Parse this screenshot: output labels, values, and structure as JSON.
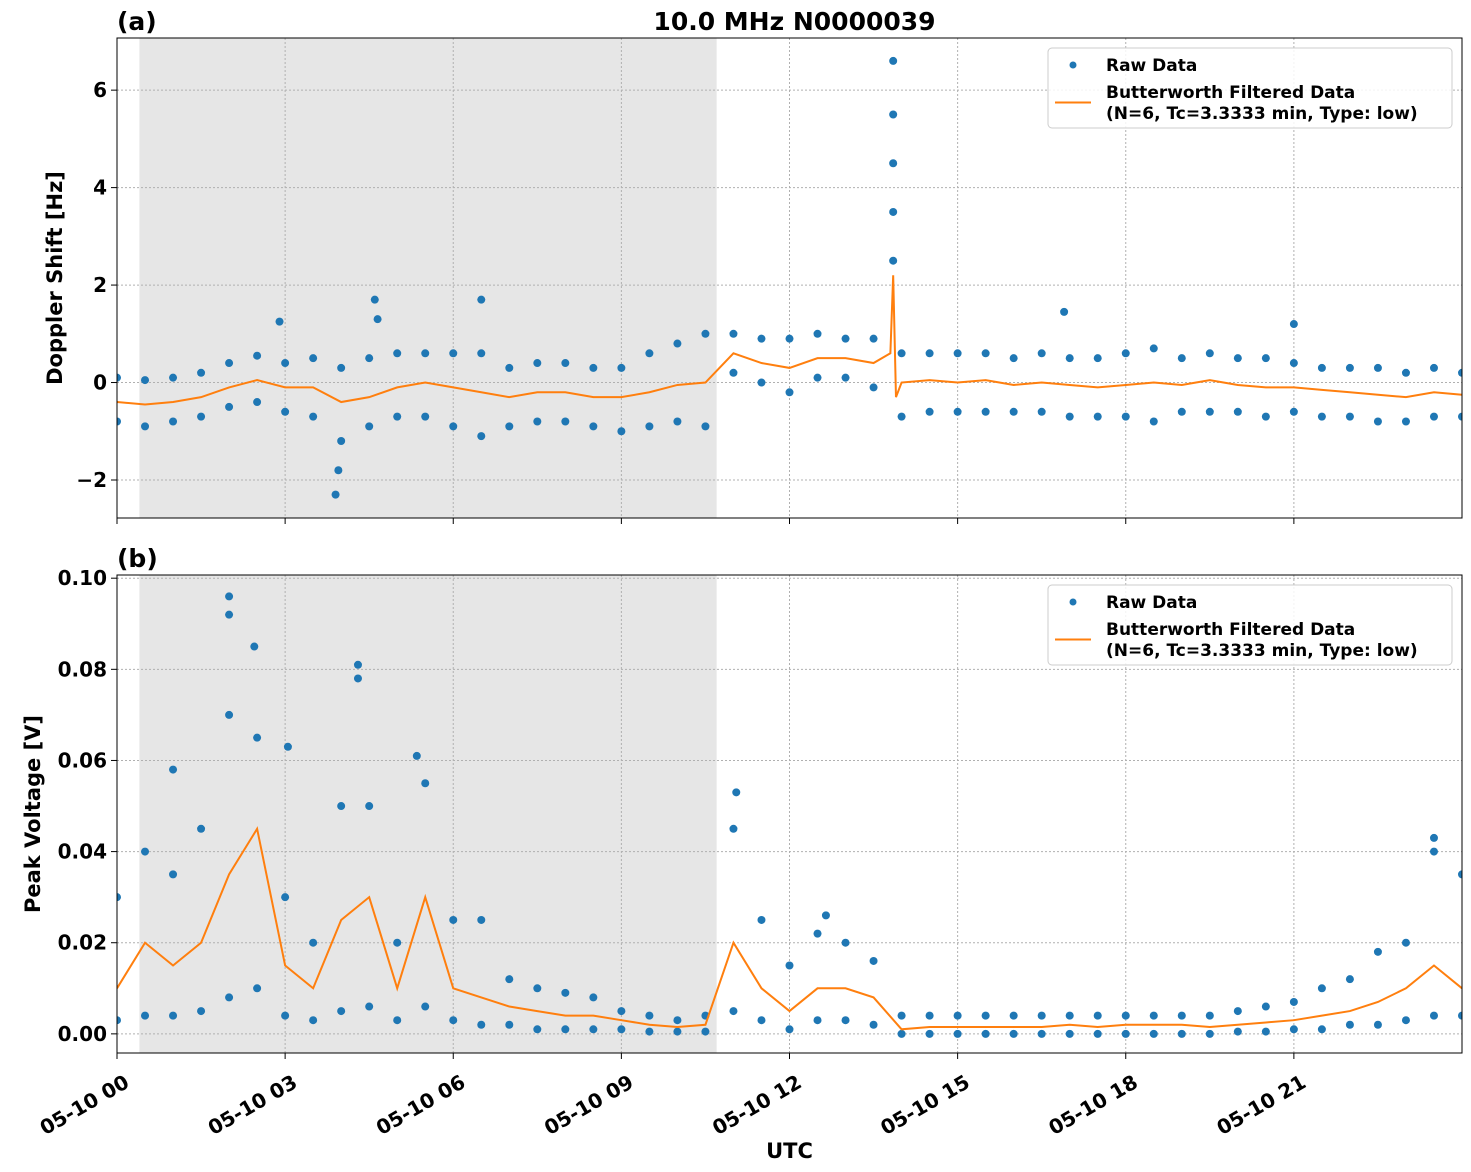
{
  "chart_data": [
    {
      "type": "scatter",
      "title": "10.0 MHz N0000039",
      "panel_label": "(a)",
      "ylabel": "Doppler Shift [Hz]",
      "xlim": [
        0,
        24
      ],
      "ylim": [
        -2.78,
        7.07
      ],
      "xticks": [
        0,
        3,
        6,
        9,
        12,
        15,
        18,
        21
      ],
      "yticks": [
        {
          "value": -2,
          "label": "−2"
        },
        0,
        2,
        4,
        6
      ],
      "grid": true,
      "legend": "upper right",
      "shaded_span": [
        0.4,
        10.7
      ],
      "shade_color": "#e6e6e6",
      "series": [
        {
          "name": "Raw Data",
          "type": "scatter",
          "color": "#1f77b4",
          "x": [
            0,
            0.5,
            1,
            1.5,
            2,
            2.5,
            3,
            3.5,
            4,
            4.5,
            5,
            5.5,
            6,
            6.5,
            7,
            7.5,
            8,
            8.5,
            9,
            9.5,
            10,
            10.5,
            11,
            11.5,
            12,
            12.5,
            13,
            13.5,
            14,
            14.5,
            15,
            15.5,
            16,
            16.5,
            17,
            17.5,
            18,
            18.5,
            19,
            19.5,
            20,
            20.5,
            21,
            21.5,
            22,
            22.5,
            23,
            23.5,
            24,
            0,
            0.5,
            1,
            1.5,
            2,
            2.5,
            3,
            3.5,
            4,
            4.5,
            5,
            5.5,
            6,
            6.5,
            7,
            7.5,
            8,
            8.5,
            9,
            9.5,
            10,
            10.5,
            11,
            11.5,
            12,
            12.5,
            13,
            13.5,
            14,
            14.5,
            15,
            15.5,
            16,
            16.5,
            17,
            17.5,
            18,
            18.5,
            19,
            19.5,
            20,
            20.5,
            21,
            21.5,
            22,
            22.5,
            23,
            23.5,
            24,
            2.9,
            3.9,
            3.95,
            4.6,
            4.65,
            6.5,
            13.85,
            13.85,
            13.85,
            13.85,
            13.85,
            16.9,
            21.0
          ],
          "values": [
            0.1,
            0.05,
            0.1,
            0.2,
            0.4,
            0.55,
            0.4,
            0.5,
            0.3,
            0.5,
            0.6,
            0.6,
            0.6,
            0.6,
            0.3,
            0.4,
            0.4,
            0.3,
            0.3,
            0.6,
            0.8,
            1.0,
            1.0,
            0.9,
            0.9,
            1.0,
            0.9,
            0.9,
            0.6,
            0.6,
            0.6,
            0.6,
            0.5,
            0.6,
            0.5,
            0.5,
            0.6,
            0.7,
            0.5,
            0.6,
            0.5,
            0.5,
            0.4,
            0.3,
            0.3,
            0.3,
            0.2,
            0.3,
            0.2,
            -0.8,
            -0.9,
            -0.8,
            -0.7,
            -0.5,
            -0.4,
            -0.6,
            -0.7,
            -1.2,
            -0.9,
            -0.7,
            -0.7,
            -0.9,
            -1.1,
            -0.9,
            -0.8,
            -0.8,
            -0.9,
            -1.0,
            -0.9,
            -0.8,
            -0.9,
            0.2,
            0.0,
            -0.2,
            0.1,
            0.1,
            -0.1,
            -0.7,
            -0.6,
            -0.6,
            -0.6,
            -0.6,
            -0.6,
            -0.7,
            -0.7,
            -0.7,
            -0.8,
            -0.6,
            -0.6,
            -0.6,
            -0.7,
            -0.6,
            -0.7,
            -0.7,
            -0.8,
            -0.8,
            -0.7,
            -0.7,
            1.25,
            -2.3,
            -1.8,
            1.7,
            1.3,
            1.7,
            6.6,
            5.5,
            4.5,
            3.5,
            2.5,
            1.45,
            1.2
          ]
        },
        {
          "name": "Butterworth Filtered Data\n(N=6, Tc=3.3333 min, Type: low)",
          "type": "line",
          "color": "#ff7f0e",
          "x": [
            0,
            0.5,
            1,
            1.5,
            2,
            2.5,
            3,
            3.5,
            4,
            4.5,
            5,
            5.5,
            6,
            6.5,
            7,
            7.5,
            8,
            8.5,
            9,
            9.5,
            10,
            10.5,
            11,
            11.5,
            12,
            12.5,
            13,
            13.5,
            13.8,
            13.85,
            13.9,
            14,
            14.5,
            15,
            15.5,
            16,
            16.5,
            17,
            17.5,
            18,
            18.5,
            19,
            19.5,
            20,
            20.5,
            21,
            21.5,
            22,
            22.5,
            23,
            23.5,
            24
          ],
          "values": [
            -0.4,
            -0.45,
            -0.4,
            -0.3,
            -0.1,
            0.05,
            -0.1,
            -0.1,
            -0.4,
            -0.3,
            -0.1,
            0.0,
            -0.1,
            -0.2,
            -0.3,
            -0.2,
            -0.2,
            -0.3,
            -0.3,
            -0.2,
            -0.05,
            0.0,
            0.6,
            0.4,
            0.3,
            0.5,
            0.5,
            0.4,
            0.6,
            2.2,
            -0.3,
            0.0,
            0.05,
            0.0,
            0.05,
            -0.05,
            0.0,
            -0.05,
            -0.1,
            -0.05,
            0.0,
            -0.05,
            0.05,
            -0.05,
            -0.1,
            -0.1,
            -0.15,
            -0.2,
            -0.25,
            -0.3,
            -0.2,
            -0.25
          ]
        }
      ]
    },
    {
      "type": "scatter",
      "panel_label": "(b)",
      "ylabel": "Peak Voltage [V]",
      "xlabel": "UTC",
      "xlim": [
        0,
        24
      ],
      "ylim": [
        -0.0042,
        0.1007
      ],
      "xticks": [
        {
          "value": 0,
          "label": "05-10 00"
        },
        {
          "value": 3,
          "label": "05-10 03"
        },
        {
          "value": 6,
          "label": "05-10 06"
        },
        {
          "value": 9,
          "label": "05-10 09"
        },
        {
          "value": 12,
          "label": "05-10 12"
        },
        {
          "value": 15,
          "label": "05-10 15"
        },
        {
          "value": 18,
          "label": "05-10 18"
        },
        {
          "value": 21,
          "label": "05-10 21"
        }
      ],
      "yticks": [
        {
          "value": 0,
          "label": "0.00"
        },
        0.02,
        0.04,
        0.06,
        0.08,
        {
          "value": 0.1,
          "label": "0.10"
        }
      ],
      "grid": true,
      "legend": "upper right",
      "shaded_span": [
        0.4,
        10.7
      ],
      "shade_color": "#e6e6e6",
      "series": [
        {
          "name": "Raw Data",
          "type": "scatter",
          "color": "#1f77b4",
          "x": [
            0,
            0.5,
            1,
            1.5,
            2,
            2.5,
            3,
            3.5,
            4,
            4.5,
            5,
            5.5,
            6,
            6.5,
            7,
            7.5,
            8,
            8.5,
            9,
            9.5,
            10,
            10.5,
            11,
            11.5,
            12,
            12.5,
            13,
            13.5,
            14,
            14.5,
            15,
            15.5,
            16,
            16.5,
            17,
            17.5,
            18,
            18.5,
            19,
            19.5,
            20,
            20.5,
            21,
            21.5,
            22,
            22.5,
            23,
            23.5,
            24,
            0,
            0.5,
            1,
            1.5,
            2,
            2.5,
            3,
            3.5,
            4,
            4.5,
            5,
            5.5,
            6,
            6.5,
            7,
            7.5,
            8,
            8.5,
            9,
            9.5,
            10,
            10.5,
            11,
            11.5,
            12,
            12.5,
            13,
            13.5,
            14,
            14.5,
            15,
            15.5,
            16,
            16.5,
            17,
            17.5,
            18,
            18.5,
            19,
            19.5,
            20,
            20.5,
            21,
            21.5,
            22,
            22.5,
            23,
            23.5,
            24,
            2.0,
            2.0,
            2.45,
            4.3,
            4.3,
            5.35,
            1.0,
            11.05,
            23.5,
            12.65,
            3.05
          ],
          "values": [
            0.03,
            0.04,
            0.035,
            0.045,
            0.07,
            0.065,
            0.03,
            0.02,
            0.05,
            0.05,
            0.02,
            0.055,
            0.025,
            0.025,
            0.012,
            0.01,
            0.009,
            0.008,
            0.005,
            0.004,
            0.003,
            0.004,
            0.045,
            0.025,
            0.015,
            0.022,
            0.02,
            0.016,
            0.004,
            0.004,
            0.004,
            0.004,
            0.004,
            0.004,
            0.004,
            0.004,
            0.004,
            0.004,
            0.004,
            0.004,
            0.005,
            0.006,
            0.007,
            0.01,
            0.012,
            0.018,
            0.02,
            0.04,
            0.035,
            0.003,
            0.004,
            0.004,
            0.005,
            0.008,
            0.01,
            0.004,
            0.003,
            0.005,
            0.006,
            0.003,
            0.006,
            0.003,
            0.002,
            0.002,
            0.001,
            0.001,
            0.001,
            0.001,
            0.0005,
            0.0005,
            0.0005,
            0.005,
            0.003,
            0.001,
            0.003,
            0.003,
            0.002,
            0.0,
            0.0,
            0.0,
            0.0,
            0.0,
            0.0,
            0.0,
            0.0,
            0.0,
            0.0,
            0.0,
            0.0,
            0.0005,
            0.0005,
            0.001,
            0.001,
            0.002,
            0.002,
            0.003,
            0.004,
            0.004,
            0.096,
            0.092,
            0.085,
            0.081,
            0.078,
            0.061,
            0.058,
            0.053,
            0.043,
            0.026,
            0.063
          ]
        },
        {
          "name": "Butterworth Filtered Data\n(N=6, Tc=3.3333 min, Type: low)",
          "type": "line",
          "color": "#ff7f0e",
          "x": [
            0,
            0.5,
            1,
            1.5,
            2,
            2.5,
            3,
            3.5,
            4,
            4.5,
            5,
            5.5,
            6,
            6.5,
            7,
            7.5,
            8,
            8.5,
            9,
            9.5,
            10,
            10.5,
            11,
            11.5,
            12,
            12.5,
            13,
            13.5,
            14,
            14.5,
            15,
            15.5,
            16,
            16.5,
            17,
            17.5,
            18,
            18.5,
            19,
            19.5,
            20,
            20.5,
            21,
            21.5,
            22,
            22.5,
            23,
            23.5,
            24
          ],
          "values": [
            0.01,
            0.02,
            0.015,
            0.02,
            0.035,
            0.045,
            0.015,
            0.01,
            0.025,
            0.03,
            0.01,
            0.03,
            0.01,
            0.008,
            0.006,
            0.005,
            0.004,
            0.004,
            0.003,
            0.002,
            0.0015,
            0.002,
            0.02,
            0.01,
            0.005,
            0.01,
            0.01,
            0.008,
            0.001,
            0.0015,
            0.0015,
            0.0015,
            0.0015,
            0.0015,
            0.002,
            0.0015,
            0.002,
            0.002,
            0.002,
            0.0015,
            0.002,
            0.0025,
            0.003,
            0.004,
            0.005,
            0.007,
            0.01,
            0.015,
            0.01
          ]
        }
      ]
    }
  ]
}
